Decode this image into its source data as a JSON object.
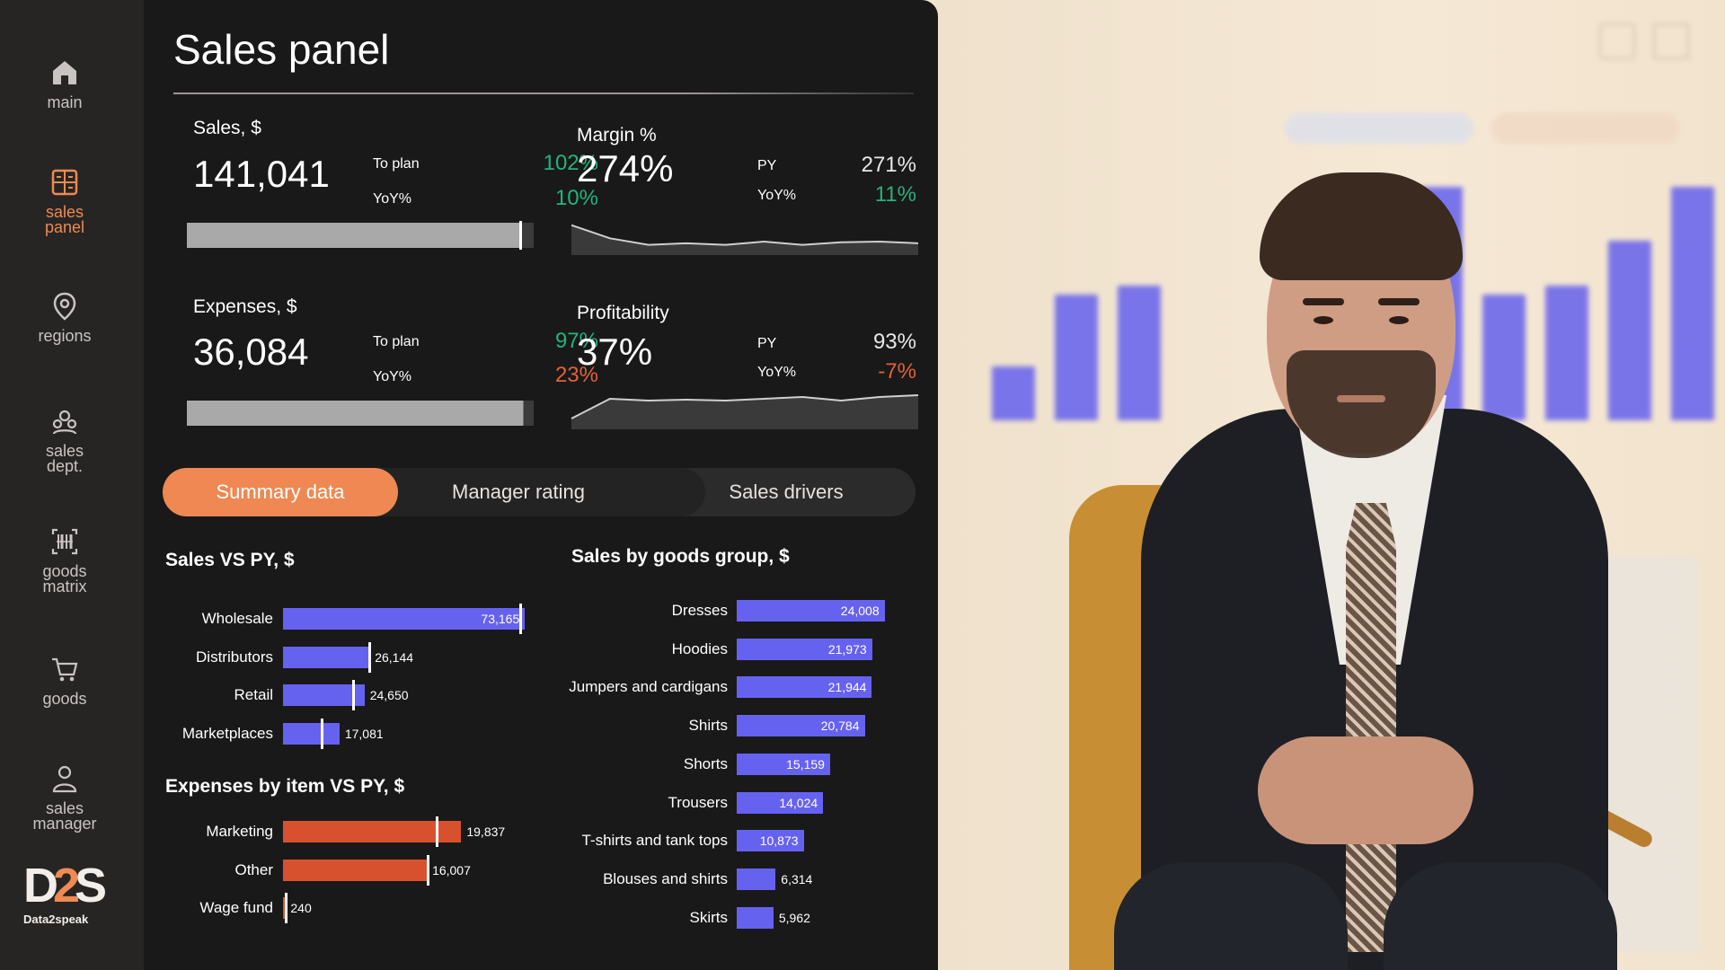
{
  "sidebar": {
    "items": [
      {
        "label": "main",
        "icon": "home-icon"
      },
      {
        "label": "sales panel",
        "icon": "calculator-icon",
        "active": true
      },
      {
        "label": "regions",
        "icon": "map-pin-icon"
      },
      {
        "label": "sales dept.",
        "icon": "team-icon"
      },
      {
        "label": "goods matrix",
        "icon": "barcode-icon"
      },
      {
        "label": "goods",
        "icon": "cart-icon"
      },
      {
        "label": "sales manager",
        "icon": "user-icon"
      }
    ],
    "logo_text": "Data2speak"
  },
  "panel": {
    "title": "Sales panel",
    "kpis": {
      "sales": {
        "label": "Sales, $",
        "value": "141,041",
        "to_plan_label": "To plan",
        "to_plan": "102%",
        "yoy_label": "YoY%",
        "yoy": "10%",
        "progress": 0.96
      },
      "margin": {
        "label": "Margin %",
        "value": "274%",
        "py_label": "PY",
        "py": "271%",
        "yoy_label": "YoY%",
        "yoy": "11%"
      },
      "expenses": {
        "label": "Expenses, $",
        "value": "36,084",
        "to_plan_label": "To plan",
        "to_plan": "97%",
        "yoy_label": "YoY%",
        "yoy": "23%",
        "progress": 0.97
      },
      "profitability": {
        "label": "Profitability",
        "value": "37%",
        "py_label": "PY",
        "py": "93%",
        "yoy_label": "YoY%",
        "yoy": "-7%"
      }
    },
    "tabs": [
      {
        "label": "Summary data",
        "active": true
      },
      {
        "label": "Manager rating",
        "active": false
      },
      {
        "label": "Sales drivers",
        "active": false
      }
    ]
  },
  "colors": {
    "accent": "#ef8852",
    "bar_blue": "#6662f0",
    "bar_orange": "#d8512f",
    "positive": "#22b37e",
    "negative": "#e0623a"
  },
  "chart_data": [
    {
      "type": "bar",
      "title": "Sales VS PY, $",
      "orientation": "horizontal",
      "categories": [
        "Wholesale",
        "Distributors",
        "Retail",
        "Marketplaces"
      ],
      "values": [
        73165,
        26144,
        24650,
        17081
      ],
      "labels": [
        "73,165",
        "26,144",
        "24,650",
        "17,081"
      ],
      "py_values": [
        71500,
        25700,
        20800,
        11500
      ],
      "xlim": [
        0,
        75000
      ]
    },
    {
      "type": "bar",
      "title": "Expenses by item VS PY, $",
      "orientation": "horizontal",
      "categories": [
        "Marketing",
        "Other",
        "Wage fund"
      ],
      "values": [
        19837,
        16007,
        240
      ],
      "labels": [
        "19,837",
        "16,007",
        "240"
      ],
      "py_values": [
        17000,
        16000,
        200
      ],
      "xlim": [
        0,
        24000
      ]
    },
    {
      "type": "bar",
      "title": "Sales by goods group, $",
      "orientation": "horizontal",
      "categories": [
        "Dresses",
        "Hoodies",
        "Jumpers and cardigans",
        "Shirts",
        "Shorts",
        "Trousers",
        "T-shirts and tank tops",
        "Blouses and shirts",
        "Skirts"
      ],
      "values": [
        24008,
        21973,
        21944,
        20784,
        15159,
        14024,
        10873,
        6314,
        5962
      ],
      "labels": [
        "24,008",
        "21,973",
        "21,944",
        "20,784",
        "15,159",
        "14,024",
        "10,873",
        "6,314",
        "5,962"
      ],
      "xlim": [
        0,
        24500
      ]
    },
    {
      "type": "line",
      "title": "Margin %",
      "values": [
        272,
        268,
        266,
        266.5,
        266,
        267,
        266,
        266.8,
        267,
        266.5
      ],
      "ylim": [
        264,
        276
      ]
    },
    {
      "type": "line",
      "title": "Profitability",
      "values": [
        24,
        35,
        34,
        34.5,
        34,
        35,
        36,
        34,
        36,
        37
      ],
      "ylim": [
        20,
        40
      ]
    }
  ]
}
